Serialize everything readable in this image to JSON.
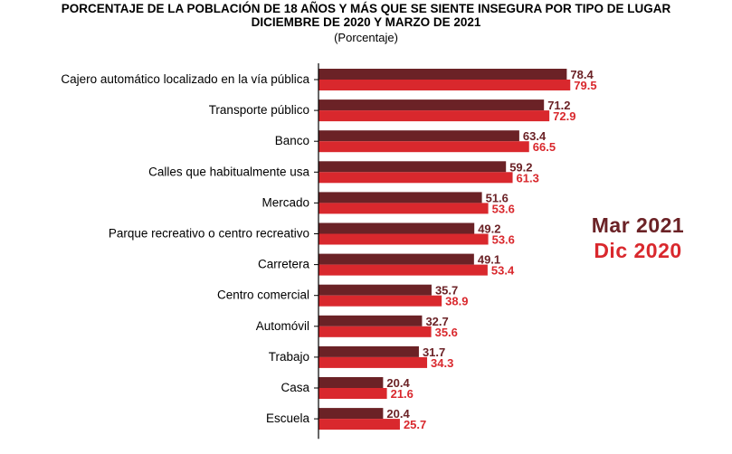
{
  "title_line1": "PORCENTAJE DE LA POBLACIÓN DE 18 AÑOS Y MÁS QUE SE SIENTE INSEGURA POR TIPO DE LUGAR",
  "title_line2": "DICIEMBRE DE 2020 Y MARZO DE 2021",
  "subtitle": "(Porcentaje)",
  "colors": {
    "mar2021": "#6B2226",
    "dic2020": "#D9282D",
    "axis": "#000000"
  },
  "chart_data": {
    "type": "bar",
    "orientation": "horizontal",
    "categories": [
      "Cajero automático localizado en la vía pública",
      "Transporte público",
      "Banco",
      "Calles que habitualmente usa",
      "Mercado",
      "Parque recreativo o centro recreativo",
      "Carretera",
      "Centro comercial",
      "Automóvil",
      "Trabajo",
      "Casa",
      "Escuela"
    ],
    "series": [
      {
        "name": "Mar 2021",
        "values": [
          78.4,
          71.2,
          63.4,
          59.2,
          51.6,
          49.2,
          49.1,
          35.7,
          32.7,
          31.7,
          20.4,
          20.4
        ]
      },
      {
        "name": "Dic 2020",
        "values": [
          79.5,
          72.9,
          66.5,
          61.3,
          53.6,
          53.6,
          53.4,
          38.9,
          35.6,
          34.3,
          21.6,
          25.7
        ]
      }
    ],
    "xlim": [
      0,
      100
    ],
    "data_labels": true,
    "grid": false,
    "legend_position": "right"
  }
}
